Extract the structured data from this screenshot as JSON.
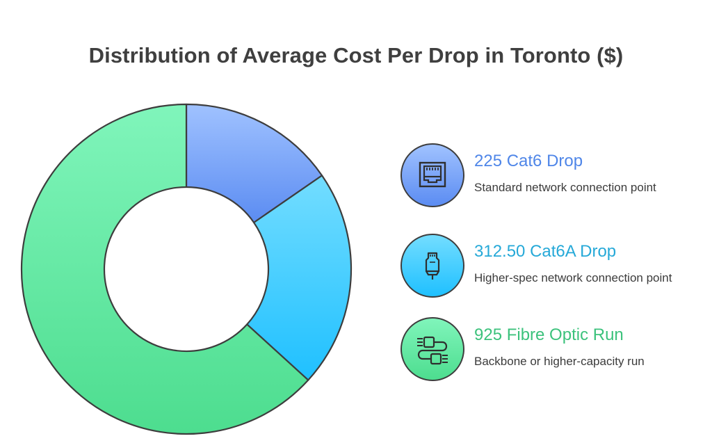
{
  "chart_data": {
    "type": "pie",
    "title": "Distribution of Average Cost Per Drop in Toronto ($)",
    "donut": true,
    "categories": [
      "Cat6 Drop",
      "Cat6A Drop",
      "Fibre Optic Run"
    ],
    "values": [
      225,
      312.5,
      925
    ],
    "labels": [
      "225 Cat6 Drop",
      "312.50 Cat6A Drop",
      "925 Fibre Optic Run"
    ],
    "descriptions": [
      "Standard network connection point",
      "Higher-spec network connection point",
      "Backbone or higher-capacity run"
    ],
    "colors": [
      {
        "light": "#a0c2ff",
        "dark": "#5b8cf2",
        "text": "#4f86e8"
      },
      {
        "light": "#73ddff",
        "dark": "#1fc0ff",
        "text": "#26a9d8"
      },
      {
        "light": "#80f5bb",
        "dark": "#4ddd8f",
        "text": "#3cc27c"
      }
    ],
    "icons": [
      "ethernet-port-icon",
      "network-plug-icon",
      "fibre-connector-icon"
    ],
    "legend_position": "right"
  }
}
